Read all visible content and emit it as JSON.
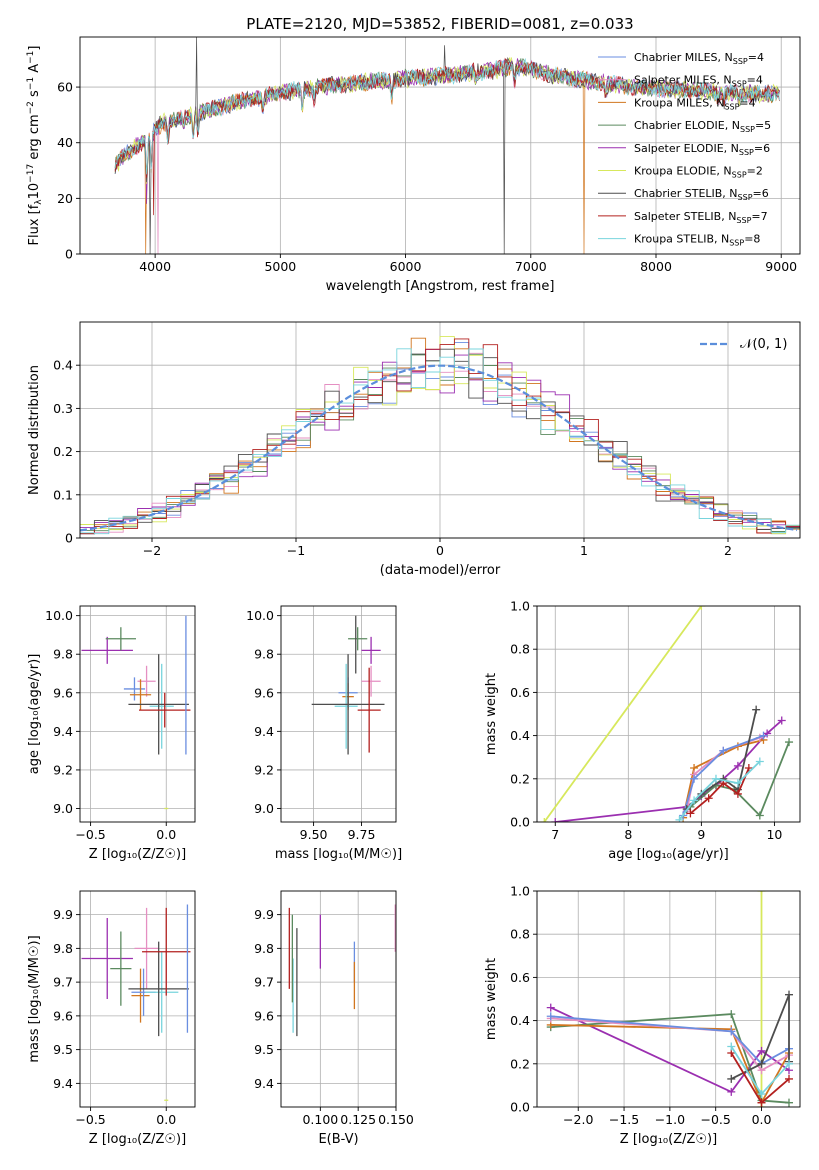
{
  "colors": {
    "Chabrier MILES": "#6a8ee0",
    "Salpeter MILES": "#e58fc2",
    "Kroupa MILES": "#d1761f",
    "Chabrier ELODIE": "#5b8a5f",
    "Salpeter ELODIE": "#9b2fb0",
    "Kroupa ELODIE": "#d7e85c",
    "Chabrier STELIB": "#4d4d4d",
    "Salpeter STELIB": "#b3201f",
    "Kroupa STELIB": "#78d4dd",
    "gauss": "#5b8edb"
  },
  "chart_data": [
    {
      "id": "spectrum",
      "type": "line",
      "title": "PLATE=2120, MJD=53852, FIBERID=0081, z=0.033",
      "xlabel": "wavelength [Angstrom, rest frame]",
      "ylabel_parts": [
        "Flux [f",
        "λ",
        "10",
        "−17",
        " erg cm",
        "−2",
        " s",
        "−1",
        " A",
        "−1",
        "]"
      ],
      "xlim": [
        3400,
        9150
      ],
      "ylim": [
        0,
        78
      ],
      "xticks": [
        4000,
        5000,
        6000,
        7000,
        8000,
        9000
      ],
      "yticks": [
        0,
        20,
        40,
        60
      ],
      "continuum": [
        [
          3680,
          32
        ],
        [
          3800,
          37
        ],
        [
          3950,
          42
        ],
        [
          4050,
          47
        ],
        [
          4300,
          50
        ],
        [
          4600,
          54
        ],
        [
          5000,
          58
        ],
        [
          5300,
          60
        ],
        [
          5600,
          61.5
        ],
        [
          6000,
          63
        ],
        [
          6300,
          64
        ],
        [
          6500,
          65
        ],
        [
          6700,
          66
        ],
        [
          6850,
          67.5
        ],
        [
          7000,
          66.5
        ],
        [
          7200,
          64
        ],
        [
          7500,
          62
        ],
        [
          7800,
          60
        ],
        [
          8000,
          59.5
        ],
        [
          8200,
          59
        ],
        [
          8400,
          58.5
        ],
        [
          8600,
          58
        ],
        [
          8800,
          57.5
        ],
        [
          8990,
          57.5
        ]
      ],
      "absorption_features": [
        [
          3934,
          14
        ],
        [
          3969,
          12
        ],
        [
          4102,
          6
        ],
        [
          4227,
          4
        ],
        [
          4305,
          8
        ],
        [
          4341,
          6
        ],
        [
          4861,
          5
        ],
        [
          5175,
          7
        ],
        [
          5270,
          4
        ],
        [
          5890,
          6
        ],
        [
          6563,
          4
        ],
        [
          6870,
          5
        ],
        [
          7600,
          4
        ],
        [
          8498,
          3
        ],
        [
          8542,
          3
        ],
        [
          8662,
          3
        ]
      ],
      "legend": [
        {
          "key": "Chabrier MILES",
          "label": "Chabrier MILES, N",
          "sub": "SSP",
          "n": "=4"
        },
        {
          "key": "Salpeter MILES",
          "label": "Salpeter MILES, N",
          "sub": "SSP",
          "n": "=4"
        },
        {
          "key": "Kroupa MILES",
          "label": "Kroupa MILES, N",
          "sub": "SSP",
          "n": "=4"
        },
        {
          "key": "Chabrier ELODIE",
          "label": "Chabrier ELODIE, N",
          "sub": "SSP",
          "n": "=5"
        },
        {
          "key": "Salpeter ELODIE",
          "label": "Salpeter ELODIE, N",
          "sub": "SSP",
          "n": "=6"
        },
        {
          "key": "Kroupa ELODIE",
          "label": "Kroupa ELODIE, N",
          "sub": "SSP",
          "n": "=2"
        },
        {
          "key": "Chabrier STELIB",
          "label": "Chabrier STELIB, N",
          "sub": "SSP",
          "n": "=6"
        },
        {
          "key": "Salpeter STELIB",
          "label": "Salpeter STELIB, N",
          "sub": "SSP",
          "n": "=7"
        },
        {
          "key": "Kroupa STELIB",
          "label": "Kroupa STELIB, N",
          "sub": "SSP",
          "n": "=8"
        }
      ]
    },
    {
      "id": "residuals",
      "type": "line",
      "xlabel": "(data-model)/error",
      "ylabel": "Normed distribution",
      "xlim": [
        -2.5,
        2.5
      ],
      "ylim": [
        0,
        0.5
      ],
      "xticks": [
        -2,
        -1,
        0,
        1,
        2
      ],
      "xtick_labels": [
        "−2",
        "−1",
        "0",
        "1",
        "2"
      ],
      "yticks": [
        0,
        0.1,
        0.2,
        0.3,
        0.4
      ],
      "legend_label": "𝒩(0, 1)",
      "bin_width": 0.1
    },
    {
      "id": "z-age",
      "type": "scatter",
      "xlabel": "Z [log₁₀(Z/Z☉)]",
      "ylabel": "age  [log₁₀(age/yr)]",
      "xlim": [
        -0.57,
        0.19
      ],
      "ylim": [
        8.93,
        10.05
      ],
      "xticks": [
        -0.5,
        0.0
      ],
      "xtick_labels": [
        "−0.5",
        "0.0"
      ],
      "yticks": [
        9.0,
        9.2,
        9.4,
        9.6,
        9.8,
        10.0
      ],
      "ytick_labels": [
        "9.0",
        "9.2",
        "9.4",
        "9.6",
        "9.8",
        "10.0"
      ],
      "points": [
        {
          "key": "Salpeter ELODIE",
          "x": -0.39,
          "y": 9.82,
          "xerr": 0.17,
          "yerr": 0.07
        },
        {
          "key": "Chabrier ELODIE",
          "x": -0.3,
          "y": 9.88,
          "xerr": 0.1,
          "yerr": 0.06
        },
        {
          "key": "Chabrier MILES",
          "x": -0.21,
          "y": 9.62,
          "xerr": 0.07,
          "yerr": 0.06
        },
        {
          "key": "Salpeter MILES",
          "x": -0.13,
          "y": 9.66,
          "xerr": 0.06,
          "yerr": 0.08
        },
        {
          "key": "Kroupa MILES",
          "x": -0.17,
          "y": 9.59,
          "xerr": 0.07,
          "yerr": 0.08
        },
        {
          "key": "Kroupa STELIB",
          "x": -0.03,
          "y": 9.53,
          "xerr": 0.08,
          "yerr": 0.22
        },
        {
          "key": "Chabrier STELIB",
          "x": -0.05,
          "y": 9.54,
          "xerr": 0.2,
          "yerr": 0.26
        },
        {
          "key": "Salpeter STELIB",
          "x": -0.01,
          "y": 9.51,
          "xerr": 0.17,
          "yerr": 0.09
        },
        {
          "key": "Chabrier MILES",
          "x": 0.13,
          "y": 9.64,
          "xerr": 0.0,
          "yerr": 0.36
        },
        {
          "key": "Kroupa ELODIE",
          "x": 0.0,
          "y": 9.0,
          "xerr": 0.0,
          "yerr": 0.0
        }
      ]
    },
    {
      "id": "mass-age",
      "type": "scatter",
      "xlabel": "mass [log₁₀(M/M☉)]",
      "xlim": [
        9.33,
        9.93
      ],
      "ylim": [
        8.93,
        10.05
      ],
      "xticks": [
        9.5,
        9.75
      ],
      "xtick_labels": [
        "9.50",
        "9.75"
      ],
      "yticks": [
        9.0,
        9.2,
        9.4,
        9.6,
        9.8,
        10.0
      ],
      "ytick_labels": [
        "9.0",
        "9.2",
        "9.4",
        "9.6",
        "9.8",
        "10.0"
      ],
      "points": [
        {
          "key": "Salpeter ELODIE",
          "x": 9.8,
          "y": 9.82,
          "xerr": 0.05,
          "yerr": 0.07
        },
        {
          "key": "Chabrier ELODIE",
          "x": 9.73,
          "y": 9.88,
          "xerr": 0.05,
          "yerr": 0.06
        },
        {
          "key": "Chabrier STELIB",
          "x": 9.72,
          "y": 9.85,
          "xerr": 0.0,
          "yerr": 0.15
        },
        {
          "key": "Salpeter MILES",
          "x": 9.8,
          "y": 9.66,
          "xerr": 0.05,
          "yerr": 0.08
        },
        {
          "key": "Chabrier MILES",
          "x": 9.68,
          "y": 9.6,
          "xerr": 0.05,
          "yerr": 0.08
        },
        {
          "key": "Kroupa MILES",
          "x": 9.68,
          "y": 9.58,
          "xerr": 0.03,
          "yerr": 0.07
        },
        {
          "key": "Kroupa STELIB",
          "x": 9.67,
          "y": 9.53,
          "xerr": 0.06,
          "yerr": 0.22
        },
        {
          "key": "Chabrier STELIB",
          "x": 9.68,
          "y": 9.54,
          "xerr": 0.19,
          "yerr": 0.26
        },
        {
          "key": "Salpeter STELIB",
          "x": 9.79,
          "y": 9.51,
          "xerr": 0.06,
          "yerr": 0.22
        }
      ]
    },
    {
      "id": "age-weight",
      "type": "line",
      "xlabel": "age  [log₁₀(age/yr)]",
      "ylabel": "mass weight",
      "xlim": [
        6.75,
        10.35
      ],
      "ylim": [
        0,
        1
      ],
      "xticks": [
        7,
        8,
        9,
        10
      ],
      "yticks": [
        0,
        0.2,
        0.4,
        0.6,
        0.8,
        1.0
      ],
      "ytick_labels": [
        "0.0",
        "0.2",
        "0.4",
        "0.6",
        "0.8",
        "1.0"
      ],
      "series": [
        {
          "key": "Kroupa ELODIE",
          "x": [
            6.85,
            9.0
          ],
          "y": [
            0.0,
            1.0
          ]
        },
        {
          "key": "Salpeter ELODIE",
          "x": [
            7.0,
            8.8,
            9.0,
            9.2,
            9.5,
            9.9,
            10.1
          ],
          "y": [
            0.0,
            0.07,
            0.12,
            0.17,
            0.26,
            0.41,
            0.47
          ]
        },
        {
          "key": "Kroupa MILES",
          "x": [
            8.75,
            8.9,
            9.5,
            9.85
          ],
          "y": [
            0.02,
            0.25,
            0.35,
            0.38
          ]
        },
        {
          "key": "Salpeter MILES",
          "x": [
            8.8,
            8.9,
            9.3,
            9.8
          ],
          "y": [
            0.05,
            0.22,
            0.33,
            0.39
          ]
        },
        {
          "key": "Chabrier MILES",
          "x": [
            8.75,
            8.9,
            9.3,
            9.85
          ],
          "y": [
            0.03,
            0.2,
            0.33,
            0.4
          ]
        },
        {
          "key": "Chabrier ELODIE",
          "x": [
            8.85,
            9.2,
            9.45,
            9.8,
            10.2
          ],
          "y": [
            0.07,
            0.17,
            0.15,
            0.03,
            0.37
          ]
        },
        {
          "key": "Chabrier STELIB",
          "x": [
            8.8,
            9.0,
            9.3,
            9.5,
            9.75
          ],
          "y": [
            0.06,
            0.13,
            0.2,
            0.15,
            0.52
          ]
        },
        {
          "key": "Salpeter STELIB",
          "x": [
            8.85,
            9.1,
            9.3,
            9.5,
            9.65
          ],
          "y": [
            0.04,
            0.11,
            0.18,
            0.13,
            0.25
          ]
        },
        {
          "key": "Kroupa STELIB",
          "x": [
            8.7,
            8.9,
            9.2,
            9.5,
            9.8
          ],
          "y": [
            0.01,
            0.1,
            0.2,
            0.18,
            0.28
          ]
        }
      ]
    },
    {
      "id": "z-mass",
      "type": "scatter",
      "xlabel": "Z [log₁₀(Z/Z☉)]",
      "ylabel": "mass [log₁₀(M/M☉)]",
      "xlim": [
        -0.57,
        0.19
      ],
      "ylim": [
        9.33,
        9.97
      ],
      "xticks": [
        -0.5,
        0.0
      ],
      "xtick_labels": [
        "−0.5",
        "0.0"
      ],
      "yticks": [
        9.4,
        9.5,
        9.6,
        9.7,
        9.8,
        9.9
      ],
      "ytick_labels": [
        "9.4",
        "9.5",
        "9.6",
        "9.7",
        "9.8",
        "9.9"
      ],
      "points": [
        {
          "key": "Salpeter ELODIE",
          "x": -0.39,
          "y": 9.77,
          "xerr": 0.17,
          "yerr": 0.12
        },
        {
          "key": "Chabrier ELODIE",
          "x": -0.3,
          "y": 9.74,
          "xerr": 0.07,
          "yerr": 0.11
        },
        {
          "key": "Salpeter MILES",
          "x": -0.13,
          "y": 9.8,
          "xerr": 0.08,
          "yerr": 0.12
        },
        {
          "key": "Kroupa MILES",
          "x": -0.17,
          "y": 9.66,
          "xerr": 0.06,
          "yerr": 0.08
        },
        {
          "key": "Chabrier MILES",
          "x": -0.15,
          "y": 9.67,
          "xerr": 0.08,
          "yerr": 0.07
        },
        {
          "key": "Kroupa STELIB",
          "x": -0.03,
          "y": 9.67,
          "xerr": 0.11,
          "yerr": 0.12
        },
        {
          "key": "Chabrier STELIB",
          "x": -0.05,
          "y": 9.68,
          "xerr": 0.2,
          "yerr": 0.14
        },
        {
          "key": "Salpeter STELIB",
          "x": 0.0,
          "y": 9.79,
          "xerr": 0.16,
          "yerr": 0.13
        },
        {
          "key": "Chabrier MILES",
          "x": 0.14,
          "y": 9.74,
          "xerr": 0.0,
          "yerr": 0.19
        },
        {
          "key": "Kroupa ELODIE",
          "x": 0.0,
          "y": 9.35,
          "xerr": 0.0,
          "yerr": 0.0
        }
      ]
    },
    {
      "id": "ebv-mass",
      "type": "scatter",
      "xlabel": "E(B-V)",
      "xlim": [
        0.074,
        0.15
      ],
      "ylim": [
        9.33,
        9.97
      ],
      "xticks": [
        0.1,
        0.125,
        0.15
      ],
      "xtick_labels": [
        "0.100",
        "0.125",
        "0.150"
      ],
      "yticks": [
        9.4,
        9.5,
        9.6,
        9.7,
        9.8,
        9.9
      ],
      "ytick_labels": [
        "9.4",
        "9.5",
        "9.6",
        "9.7",
        "9.8",
        "9.9"
      ],
      "points": [
        {
          "key": "Salpeter STELIB",
          "x": 0.0795,
          "y": 9.8,
          "xerr": 0.0,
          "yerr": 0.12
        },
        {
          "key": "Kroupa STELIB",
          "x": 0.082,
          "y": 9.66,
          "xerr": 0.0,
          "yerr": 0.11
        },
        {
          "key": "Chabrier ELODIE",
          "x": 0.0815,
          "y": 9.77,
          "xerr": 0.0,
          "yerr": 0.13
        },
        {
          "key": "Chabrier STELIB",
          "x": 0.0845,
          "y": 9.7,
          "xerr": 0.0,
          "yerr": 0.16
        },
        {
          "key": "Salpeter ELODIE",
          "x": 0.1,
          "y": 9.82,
          "xerr": 0.0,
          "yerr": 0.08
        },
        {
          "key": "Chabrier MILES",
          "x": 0.1225,
          "y": 9.76,
          "xerr": 0.0,
          "yerr": 0.06
        },
        {
          "key": "Kroupa MILES",
          "x": 0.1225,
          "y": 9.69,
          "xerr": 0.0,
          "yerr": 0.07
        },
        {
          "key": "Salpeter MILES",
          "x": 0.1495,
          "y": 9.86,
          "xerr": 0.0,
          "yerr": 0.07
        }
      ]
    },
    {
      "id": "z-weight",
      "type": "line",
      "xlabel": "Z [log₁₀(Z/Z☉)]",
      "ylabel": "mass weight",
      "xlim": [
        -2.45,
        0.42
      ],
      "ylim": [
        0,
        1
      ],
      "xticks": [
        -2.0,
        -1.5,
        -1.0,
        -0.5,
        0.0
      ],
      "xtick_labels": [
        "−2.0",
        "−1.5",
        "−1.0",
        "−0.5",
        "0.0"
      ],
      "yticks": [
        0,
        0.2,
        0.4,
        0.6,
        0.8,
        1.0
      ],
      "ytick_labels": [
        "0.0",
        "0.2",
        "0.4",
        "0.6",
        "0.8",
        "1.0"
      ],
      "series": [
        {
          "key": "Kroupa ELODIE",
          "x": [
            0.0,
            0.0
          ],
          "y": [
            0.0,
            1.0
          ]
        },
        {
          "key": "Salpeter ELODIE",
          "x": [
            -2.3,
            -0.33,
            0.0,
            0.3
          ],
          "y": [
            0.46,
            0.07,
            0.26,
            0.17
          ]
        },
        {
          "key": "Chabrier ELODIE",
          "x": [
            -2.3,
            -0.33,
            0.0,
            0.3
          ],
          "y": [
            0.37,
            0.43,
            0.03,
            0.02
          ]
        },
        {
          "key": "Kroupa MILES",
          "x": [
            -2.3,
            -0.33,
            0.0,
            0.3
          ],
          "y": [
            0.38,
            0.36,
            0.02,
            0.25
          ]
        },
        {
          "key": "Salpeter MILES",
          "x": [
            -2.3,
            -0.33,
            0.0,
            0.3
          ],
          "y": [
            0.41,
            0.35,
            0.17,
            0.24
          ]
        },
        {
          "key": "Chabrier MILES",
          "x": [
            -2.3,
            -0.33,
            0.0,
            0.3
          ],
          "y": [
            0.42,
            0.35,
            0.2,
            0.27
          ]
        },
        {
          "key": "Chabrier STELIB",
          "x": [
            -0.33,
            0.0,
            0.3,
            0.3
          ],
          "y": [
            0.13,
            0.2,
            0.52,
            0.21
          ]
        },
        {
          "key": "Salpeter STELIB",
          "x": [
            -0.33,
            0.0,
            0.3
          ],
          "y": [
            0.25,
            0.02,
            0.13
          ]
        },
        {
          "key": "Kroupa STELIB",
          "x": [
            -0.33,
            0.0,
            0.3
          ],
          "y": [
            0.28,
            0.06,
            0.2
          ]
        }
      ]
    }
  ]
}
